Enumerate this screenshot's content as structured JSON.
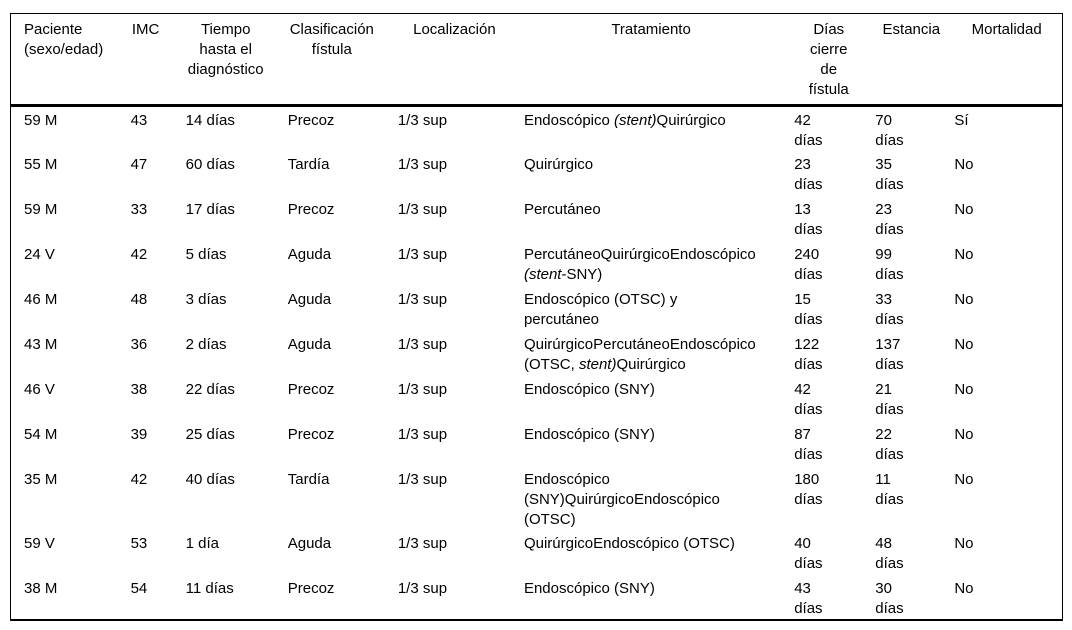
{
  "style": {
    "background": "#ffffff",
    "text_color": "#000000",
    "rule_color": "#000000"
  },
  "table": {
    "headers": [
      {
        "id": "paciente",
        "lines": [
          "Paciente",
          "(sexo/edad)"
        ]
      },
      {
        "id": "imc",
        "lines": [
          "IMC"
        ]
      },
      {
        "id": "tiempo",
        "lines": [
          "Tiempo",
          "hasta el",
          "diagnóstico"
        ]
      },
      {
        "id": "clasificacion",
        "lines": [
          "Clasificación",
          "fístula"
        ]
      },
      {
        "id": "localizacion",
        "lines": [
          "Localización"
        ]
      },
      {
        "id": "tratamiento",
        "lines": [
          "Tratamiento"
        ]
      },
      {
        "id": "dias_cierre",
        "lines": [
          "Días",
          "cierre",
          "de",
          "fístula"
        ]
      },
      {
        "id": "estancia",
        "lines": [
          "Estancia"
        ]
      },
      {
        "id": "mortalidad",
        "lines": [
          "Mortalidad"
        ]
      }
    ],
    "rows": [
      {
        "paciente": "59 M",
        "imc": "43",
        "tiempo": "14 días",
        "clasificacion": "Precoz",
        "localizacion": "1/3 sup",
        "tratamiento": [
          [
            {
              "t": "Endoscópico ",
              "it": false
            },
            {
              "t": "(stent)",
              "it": true
            },
            {
              "t": "Quirúrgico",
              "it": false
            }
          ]
        ],
        "dias_cierre": [
          "42",
          "días"
        ],
        "estancia": [
          "70",
          "días"
        ],
        "mortalidad": "Sí"
      },
      {
        "paciente": "55 M",
        "imc": "47",
        "tiempo": "60 días",
        "clasificacion": "Tardía",
        "localizacion": "1/3 sup",
        "tratamiento": [
          [
            {
              "t": "Quirúrgico",
              "it": false
            }
          ]
        ],
        "dias_cierre": [
          "23",
          "días"
        ],
        "estancia": [
          "35",
          "días"
        ],
        "mortalidad": "No"
      },
      {
        "paciente": "59 M",
        "imc": "33",
        "tiempo": "17 días",
        "clasificacion": "Precoz",
        "localizacion": "1/3 sup",
        "tratamiento": [
          [
            {
              "t": "Percutáneo",
              "it": false
            }
          ]
        ],
        "dias_cierre": [
          "13",
          "días"
        ],
        "estancia": [
          "23",
          "días"
        ],
        "mortalidad": "No"
      },
      {
        "paciente": "24 V",
        "imc": "42",
        "tiempo": "5 días",
        "clasificacion": "Aguda",
        "localizacion": "1/3 sup",
        "tratamiento": [
          [
            {
              "t": "PercutáneoQuirúrgicoEndoscópico",
              "it": false
            }
          ],
          [
            {
              "t": "(stent",
              "it": true
            },
            {
              "t": "-SNY)",
              "it": false
            }
          ]
        ],
        "dias_cierre": [
          "240",
          "días"
        ],
        "estancia": [
          "99",
          "días"
        ],
        "mortalidad": "No"
      },
      {
        "paciente": "46 M",
        "imc": "48",
        "tiempo": "3 días",
        "clasificacion": "Aguda",
        "localizacion": "1/3 sup",
        "tratamiento": [
          [
            {
              "t": "Endoscópico (OTSC) y",
              "it": false
            }
          ],
          [
            {
              "t": "percutáneo",
              "it": false
            }
          ]
        ],
        "dias_cierre": [
          "15",
          "días"
        ],
        "estancia": [
          "33",
          "días"
        ],
        "mortalidad": "No"
      },
      {
        "paciente": "43 M",
        "imc": "36",
        "tiempo": "2 días",
        "clasificacion": "Aguda",
        "localizacion": "1/3 sup",
        "tratamiento": [
          [
            {
              "t": "QuirúrgicoPercutáneoEndoscópico",
              "it": false
            }
          ],
          [
            {
              "t": "(OTSC, ",
              "it": false
            },
            {
              "t": "stent)",
              "it": true
            },
            {
              "t": "Quirúrgico",
              "it": false
            }
          ]
        ],
        "dias_cierre": [
          "122",
          "días"
        ],
        "estancia": [
          "137",
          "días"
        ],
        "mortalidad": "No"
      },
      {
        "paciente": "46 V",
        "imc": "38",
        "tiempo": "22 días",
        "clasificacion": "Precoz",
        "localizacion": "1/3 sup",
        "tratamiento": [
          [
            {
              "t": "Endoscópico (SNY)",
              "it": false
            }
          ]
        ],
        "dias_cierre": [
          "42",
          "días"
        ],
        "estancia": [
          "21",
          "días"
        ],
        "mortalidad": "No"
      },
      {
        "paciente": "54 M",
        "imc": "39",
        "tiempo": "25 días",
        "clasificacion": "Precoz",
        "localizacion": "1/3 sup",
        "tratamiento": [
          [
            {
              "t": "Endoscópico (SNY)",
              "it": false
            }
          ]
        ],
        "dias_cierre": [
          "87",
          "días"
        ],
        "estancia": [
          "22",
          "días"
        ],
        "mortalidad": "No"
      },
      {
        "paciente": "35 M",
        "imc": "42",
        "tiempo": "40 días",
        "clasificacion": "Tardía",
        "localizacion": "1/3 sup",
        "tratamiento": [
          [
            {
              "t": "Endoscópico",
              "it": false
            }
          ],
          [
            {
              "t": "(SNY)QuirúrgicoEndoscópico",
              "it": false
            }
          ],
          [
            {
              "t": "(OTSC)",
              "it": false
            }
          ]
        ],
        "dias_cierre": [
          "180",
          "días"
        ],
        "estancia": [
          "11",
          "días"
        ],
        "mortalidad": "No"
      },
      {
        "paciente": "59 V",
        "imc": "53",
        "tiempo": "1 día",
        "clasificacion": "Aguda",
        "localizacion": "1/3 sup",
        "tratamiento": [
          [
            {
              "t": "QuirúrgicoEndoscópico (OTSC)",
              "it": false
            }
          ]
        ],
        "dias_cierre": [
          "40",
          "días"
        ],
        "estancia": [
          "48",
          "días"
        ],
        "mortalidad": "No"
      },
      {
        "paciente": "38 M",
        "imc": "54",
        "tiempo": "11 días",
        "clasificacion": "Precoz",
        "localizacion": "1/3 sup",
        "tratamiento": [
          [
            {
              "t": "Endoscópico (SNY)",
              "it": false
            }
          ]
        ],
        "dias_cierre": [
          "43",
          "días"
        ],
        "estancia": [
          "30",
          "días"
        ],
        "mortalidad": "No"
      }
    ]
  }
}
